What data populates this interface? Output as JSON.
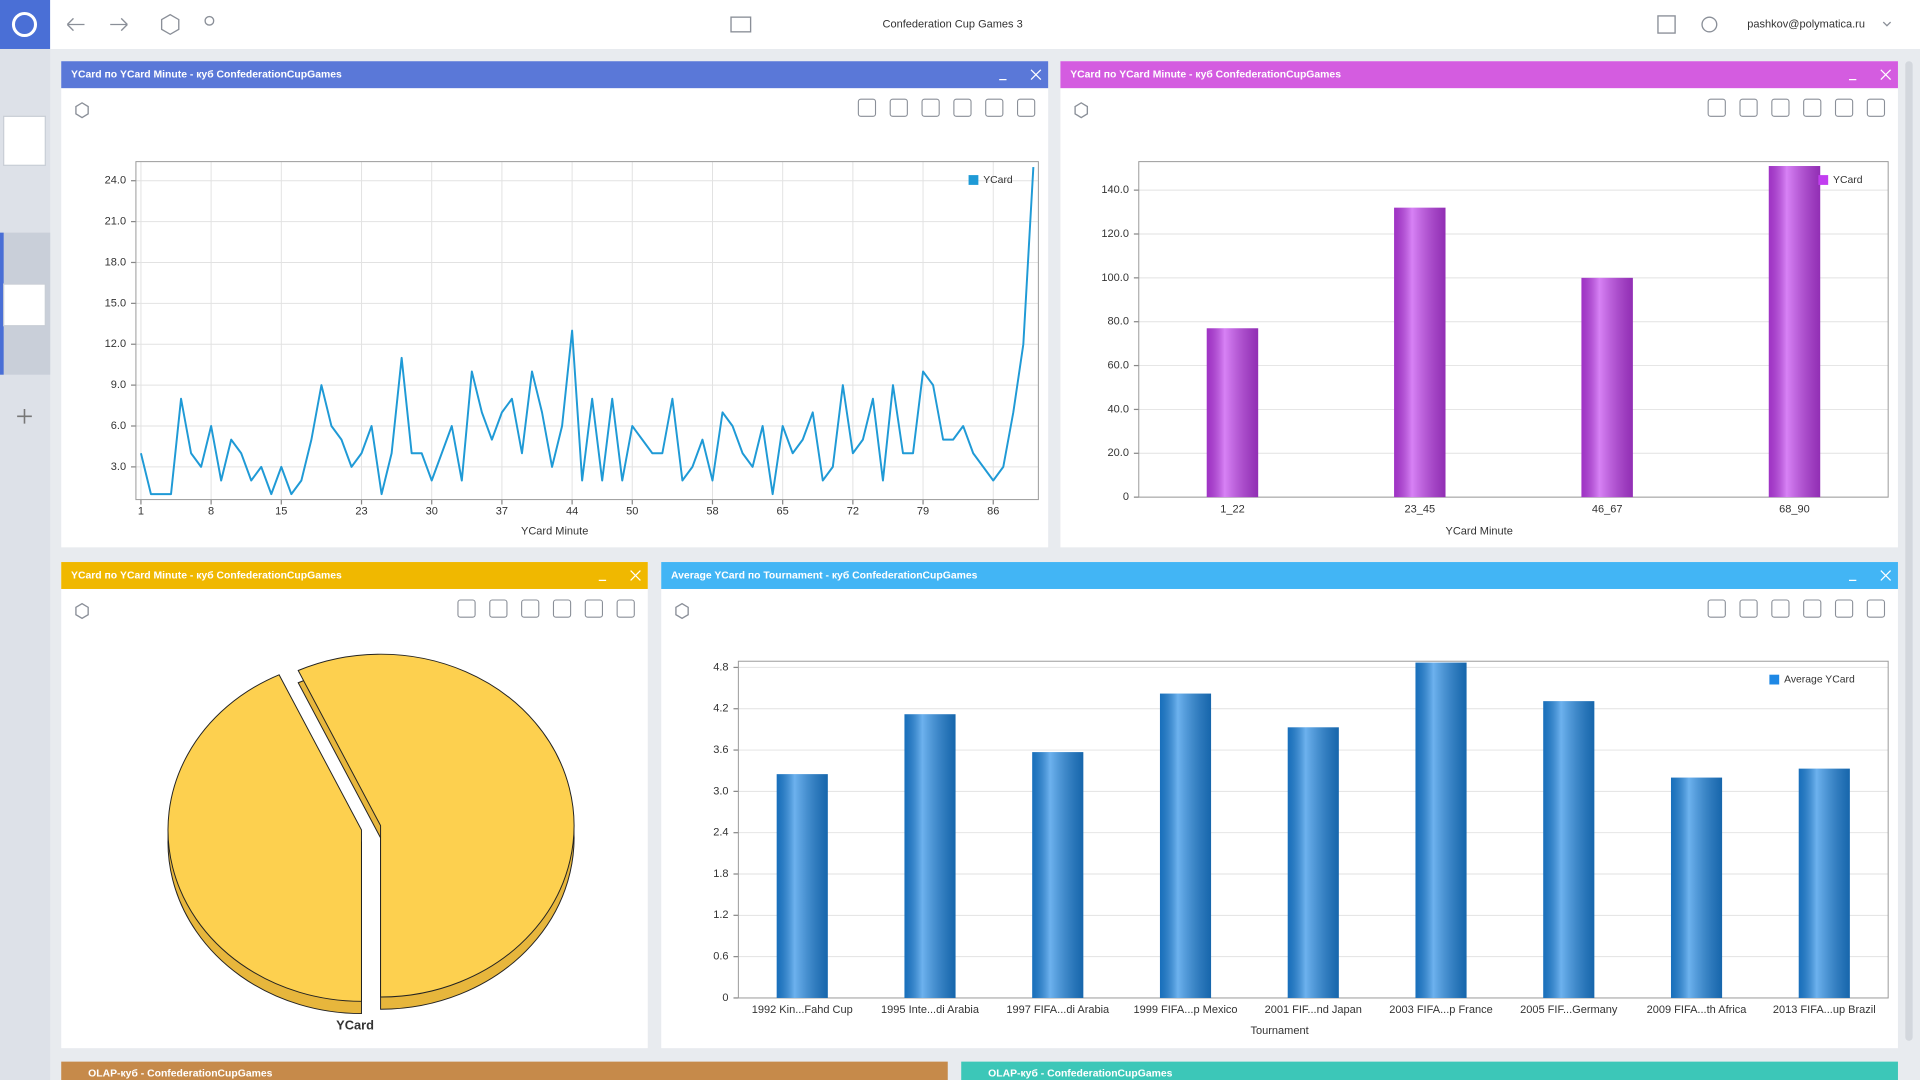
{
  "header": {
    "title": "Confederation Cup Games 3",
    "user": "pashkov@polymatica.ru"
  },
  "bottom_panels": [
    "OLAP-куб - ConfederationCupGames",
    "OLAP-куб - ConfederationCupGames"
  ],
  "chart_data": [
    {
      "type": "line",
      "title": "YCard по YCard Minute - куб ConfederationCupGames",
      "x_label": "YCard Minute",
      "x": [
        1,
        2,
        3,
        4,
        5,
        6,
        7,
        8,
        9,
        10,
        11,
        12,
        13,
        14,
        15,
        16,
        17,
        18,
        19,
        20,
        21,
        22,
        23,
        24,
        25,
        26,
        27,
        28,
        29,
        30,
        31,
        32,
        33,
        34,
        35,
        36,
        37,
        38,
        39,
        40,
        41,
        42,
        43,
        44,
        45,
        46,
        47,
        48,
        49,
        50,
        51,
        52,
        53,
        54,
        55,
        56,
        57,
        58,
        59,
        60,
        61,
        62,
        63,
        64,
        65,
        66,
        67,
        68,
        69,
        70,
        71,
        72,
        73,
        74,
        75,
        76,
        77,
        78,
        79,
        80,
        81,
        82,
        83,
        84,
        85,
        86,
        87,
        88,
        89,
        90
      ],
      "series": [
        {
          "name": "YCard",
          "color": "#1f9ad6",
          "values": [
            4,
            1,
            1,
            1,
            8,
            4,
            3,
            6,
            2,
            5,
            4,
            2,
            3,
            1,
            3,
            1,
            2,
            5,
            9,
            6,
            5,
            3,
            4,
            6,
            1,
            4,
            11,
            4,
            4,
            2,
            4,
            6,
            2,
            10,
            7,
            5,
            7,
            8,
            4,
            10,
            7,
            3,
            6,
            13,
            2,
            8,
            2,
            8,
            2,
            6,
            5,
            4,
            4,
            8,
            2,
            3,
            5,
            2,
            7,
            6,
            4,
            3,
            6,
            1,
            6,
            4,
            5,
            7,
            2,
            3,
            9,
            4,
            5,
            8,
            2,
            9,
            4,
            4,
            10,
            9,
            5,
            5,
            6,
            4,
            3,
            2,
            3,
            7,
            12,
            25
          ]
        }
      ],
      "xlim": [
        0.5,
        90.5
      ],
      "xticks": [
        1,
        8,
        15,
        23,
        30,
        37,
        44,
        50,
        58,
        65,
        72,
        79,
        86
      ],
      "ylim": [
        0.6,
        25.4
      ],
      "yticks": [
        {
          "value": 3,
          "label": "3.0"
        },
        {
          "value": 6,
          "label": "6.0"
        },
        {
          "value": 9,
          "label": "9.0"
        },
        {
          "value": 12,
          "label": "12.0"
        },
        {
          "value": 15,
          "label": "15.0"
        },
        {
          "value": 18,
          "label": "18.0"
        },
        {
          "value": 21,
          "label": "21.0"
        },
        {
          "value": 24,
          "label": "24.0"
        }
      ],
      "grid": true,
      "legend": "top-right"
    },
    {
      "type": "bar",
      "title": "YCard по YCard Minute - куб ConfederationCupGames",
      "x_label": "YCard Minute",
      "categories": [
        "1_22",
        "23_45",
        "46_67",
        "68_90"
      ],
      "series": [
        {
          "name": "YCard",
          "color": "#c23ef0",
          "values": [
            77,
            132,
            100,
            151
          ]
        }
      ],
      "ylim": [
        0,
        153
      ],
      "yticks": [
        0,
        {
          "value": 20,
          "label": "20.0"
        },
        {
          "value": 40,
          "label": "40.0"
        },
        {
          "value": 60,
          "label": "60.0"
        },
        {
          "value": 80,
          "label": "80.0"
        },
        {
          "value": 100,
          "label": "100.0"
        },
        {
          "value": 120,
          "label": "120.0"
        },
        {
          "value": 140,
          "label": "140.0"
        }
      ],
      "grid": true,
      "legend": "top-right"
    },
    {
      "type": "pie",
      "title": "YCard по YCard Minute - куб ConfederationCupGames",
      "label": "YCard",
      "categories": [
        null,
        null
      ],
      "values": [
        43,
        57
      ],
      "color": "#fdd04f"
    },
    {
      "type": "bar",
      "title": "Average YCard по Tournament - куб ConfederationCupGames",
      "x_label": "Tournament",
      "categories": [
        "1992 Kin...Fahd Cup",
        "1995 Inte...di Arabia",
        "1997 FIFA...di Arabia",
        "1999 FIFA...p Mexico",
        "2001 FIF...nd Japan",
        "2003 FIFA...p France",
        "2005 FIF...Germany",
        "2009 FIFA...th Africa",
        "2013 FIFA...up Brazil"
      ],
      "series": [
        {
          "name": "Average YCard",
          "color": "#1e88e5",
          "values": [
            3.25,
            4.12,
            3.57,
            4.42,
            3.93,
            4.87,
            4.31,
            3.2,
            3.33
          ]
        }
      ],
      "ylim": [
        0,
        4.89
      ],
      "yticks": [
        0,
        0.6,
        1.2,
        1.8,
        2.4,
        {
          "value": 3,
          "label": "3.0"
        },
        3.6,
        4.2,
        4.8
      ],
      "grid": true,
      "legend": "top-right"
    }
  ]
}
